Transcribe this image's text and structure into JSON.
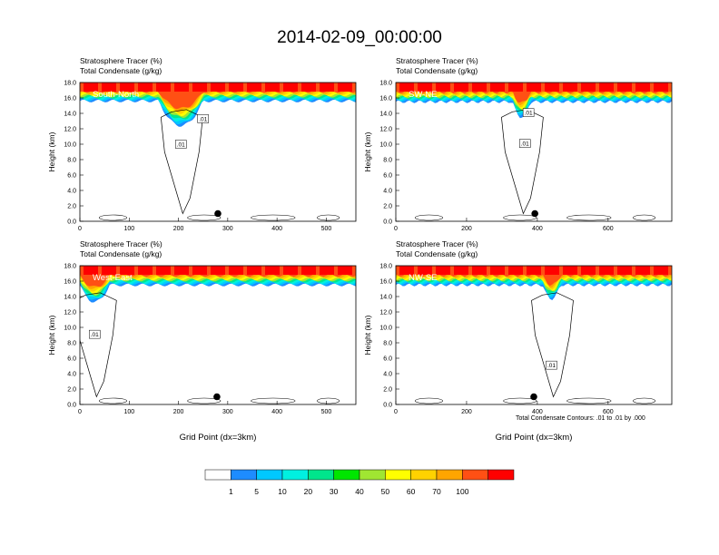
{
  "title": "2014-02-09_00:00:00",
  "colorbar": {
    "colors": [
      "#ffffff",
      "#1e8cff",
      "#00c8ff",
      "#00f0e0",
      "#00e68c",
      "#00e600",
      "#a0e632",
      "#ffff00",
      "#ffd200",
      "#ffa500",
      "#ff5014",
      "#ff0000"
    ],
    "labels": [
      "1",
      "5",
      "10",
      "20",
      "30",
      "40",
      "50",
      "60",
      "70",
      "100"
    ]
  },
  "footer": {
    "contour_note": "Total Condensate Contours: .01 to .01 by .000"
  },
  "chart_data": [
    {
      "type": "heatmap",
      "panel": "South-North",
      "title_line1": "Stratosphere Tracer   (%)",
      "title_line2": "Total Condensate   (g/kg)",
      "ylabel": "Height (km)",
      "xlabel": "",
      "xlim": [
        0,
        560
      ],
      "ylim": [
        0,
        18
      ],
      "xticks": [
        0,
        100,
        200,
        300,
        400,
        500
      ],
      "yticks": [
        "0.0",
        "2.0",
        "4.0",
        "6.0",
        "8.0",
        "10.0",
        "12.0",
        "14.0",
        "16.0",
        "18.0"
      ],
      "tracer_base_km": 15.6,
      "tracer_full_km": 17.0,
      "dip": {
        "center_x": 205,
        "half_width": 45,
        "depth_km": 3.2
      },
      "contour_labels": [
        {
          "text": ".01",
          "x": 205,
          "y": 10.0
        },
        {
          "text": ".01",
          "x": 250,
          "y": 13.3
        }
      ],
      "marker": {
        "x": 280,
        "y": 1.0
      }
    },
    {
      "type": "heatmap",
      "panel": "SW-NE",
      "title_line1": "Stratosphere Tracer   (%)",
      "title_line2": "Total Condensate   (g/kg)",
      "ylabel": "Height (km)",
      "xlabel": "",
      "xlim": [
        0,
        780
      ],
      "ylim": [
        0,
        18
      ],
      "xticks": [
        0,
        200,
        400,
        600
      ],
      "yticks": [
        "0.0",
        "2.0",
        "4.0",
        "6.0",
        "8.0",
        "10.0",
        "12.0",
        "14.0",
        "16.0",
        "18.0"
      ],
      "tracer_base_km": 15.5,
      "tracer_full_km": 16.9,
      "dip": {
        "center_x": 355,
        "half_width": 25,
        "depth_km": 2.0
      },
      "contour_labels": [
        {
          "text": ".01",
          "x": 375,
          "y": 14.1
        },
        {
          "text": ".01",
          "x": 365,
          "y": 10.1
        }
      ],
      "marker": {
        "x": 393,
        "y": 1.0
      }
    },
    {
      "type": "heatmap",
      "panel": "West-East",
      "title_line1": "Stratosphere Tracer   (%)",
      "title_line2": "Total Condensate   (g/kg)",
      "ylabel": "Height (km)",
      "xlabel": "Grid Point (dx=3km)",
      "xlim": [
        0,
        560
      ],
      "ylim": [
        0,
        18
      ],
      "xticks": [
        0,
        100,
        200,
        300,
        400,
        500
      ],
      "yticks": [
        "0.0",
        "2.0",
        "4.0",
        "6.0",
        "8.0",
        "10.0",
        "12.0",
        "14.0",
        "16.0",
        "18.0"
      ],
      "tracer_base_km": 15.5,
      "tracer_full_km": 16.9,
      "dip": {
        "center_x": 30,
        "half_width": 30,
        "depth_km": 2.2
      },
      "contour_labels": [
        {
          "text": ".01",
          "x": 30,
          "y": 9.1
        }
      ],
      "marker": {
        "x": 278,
        "y": 1.0
      }
    },
    {
      "type": "heatmap",
      "panel": "NW-SE",
      "title_line1": "Stratosphere Tracer   (%)",
      "title_line2": "Total Condensate   (g/kg)",
      "ylabel": "Height (km)",
      "xlabel": "Grid Point (dx=3km)",
      "xlim": [
        0,
        780
      ],
      "ylim": [
        0,
        18
      ],
      "xticks": [
        0,
        200,
        400,
        600
      ],
      "yticks": [
        "0.0",
        "2.0",
        "4.0",
        "6.0",
        "8.0",
        "10.0",
        "12.0",
        "14.0",
        "16.0",
        "18.0"
      ],
      "tracer_base_km": 15.5,
      "tracer_full_km": 16.9,
      "dip": {
        "center_x": 440,
        "half_width": 25,
        "depth_km": 1.8
      },
      "contour_labels": [
        {
          "text": ".01",
          "x": 440,
          "y": 5.1
        }
      ],
      "marker": {
        "x": 390,
        "y": 1.0
      }
    }
  ]
}
